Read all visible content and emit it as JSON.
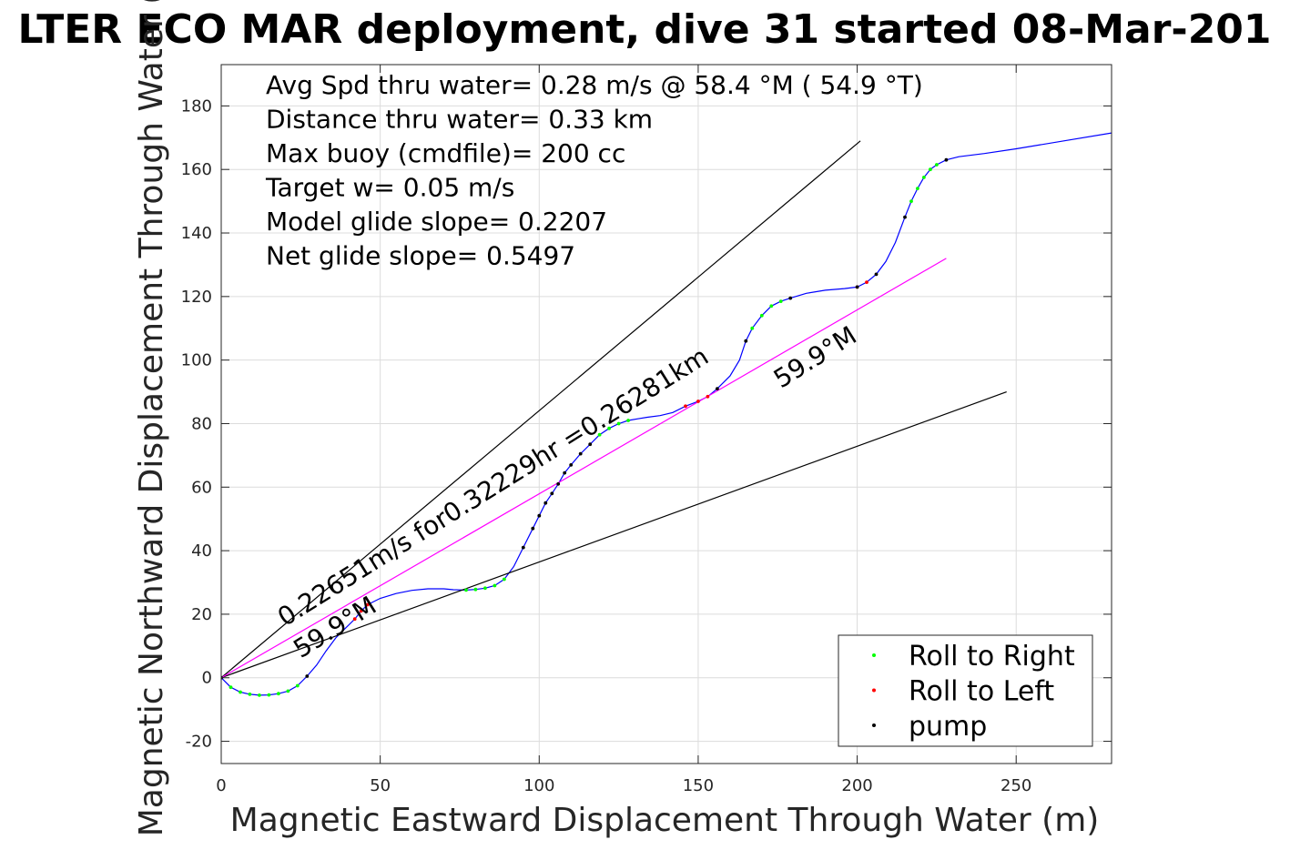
{
  "chart_data": {
    "type": "line",
    "title": "LTER ECO MAR deployment, dive 31 started 08-Mar-201",
    "xlabel": "Magnetic Eastward Displacement Through Water (m)",
    "ylabel": "Magnetic Northward Displacement Through Water (",
    "xlim": [
      0,
      280
    ],
    "ylim": [
      -27,
      193
    ],
    "xticks": [
      0,
      50,
      100,
      150,
      200,
      250
    ],
    "yticks": [
      -20,
      0,
      20,
      40,
      60,
      80,
      100,
      120,
      140,
      160,
      180
    ],
    "grid": true,
    "legend_position": "bottom-right",
    "info_lines": [
      "Avg Spd thru water=  0.28 m/s @  58.4 °M ( 54.9 °T)",
      "Distance thru water=  0.33 km",
      "Max buoy (cmdfile)= 200 cc",
      "Target w= 0.05 m/s",
      "Model glide slope= 0.2207",
      "Net glide slope= 0.5497"
    ],
    "annotations": [
      {
        "text": "0.22651m/s for0.32229hr =0.26281km",
        "x": 20,
        "y": 16,
        "rotate": -32
      },
      {
        "text": "59.9°M",
        "x": 25,
        "y": 6,
        "rotate": -32
      },
      {
        "text": "59.9°M",
        "x": 176,
        "y": 91,
        "rotate": -32
      }
    ],
    "legend": [
      {
        "label": "Roll to Right",
        "color": "#00ff00"
      },
      {
        "label": "Roll to Left",
        "color": "#ff0000"
      },
      {
        "label": "pump",
        "color": "#000000"
      }
    ],
    "series": [
      {
        "kind": "track",
        "color": "#0000ff",
        "points": [
          [
            0,
            0
          ],
          [
            3,
            -3
          ],
          [
            6,
            -4.5
          ],
          [
            9,
            -5.2
          ],
          [
            12,
            -5.5
          ],
          [
            15,
            -5.4
          ],
          [
            18,
            -5
          ],
          [
            21,
            -4.2
          ],
          [
            24,
            -2.5
          ],
          [
            27,
            0.5
          ],
          [
            30,
            4
          ],
          [
            33,
            8.5
          ],
          [
            36,
            12.5
          ],
          [
            39,
            15.5
          ],
          [
            42,
            18.5
          ],
          [
            44,
            21
          ],
          [
            46,
            23
          ],
          [
            50,
            25
          ],
          [
            55,
            26.5
          ],
          [
            60,
            27.5
          ],
          [
            65,
            28
          ],
          [
            70,
            28
          ],
          [
            73,
            27.7
          ],
          [
            77,
            27.6
          ],
          [
            80,
            27.8
          ],
          [
            83,
            28.2
          ],
          [
            86,
            29
          ],
          [
            89,
            31
          ],
          [
            92,
            35
          ],
          [
            95,
            41
          ],
          [
            98,
            47
          ],
          [
            100,
            51
          ],
          [
            102,
            55
          ],
          [
            104,
            58
          ],
          [
            106,
            61
          ],
          [
            108,
            64.5
          ],
          [
            110,
            67
          ],
          [
            113,
            70.5
          ],
          [
            116,
            73.5
          ],
          [
            119,
            76.5
          ],
          [
            122,
            78.5
          ],
          [
            125,
            80
          ],
          [
            128,
            81
          ],
          [
            131,
            81.5
          ],
          [
            134,
            82
          ],
          [
            138,
            82.5
          ],
          [
            142,
            83.5
          ],
          [
            146,
            85.5
          ],
          [
            150,
            87
          ],
          [
            153,
            88.5
          ],
          [
            156,
            91
          ],
          [
            160,
            95
          ],
          [
            163,
            100
          ],
          [
            165,
            106
          ],
          [
            167,
            110
          ],
          [
            170,
            114
          ],
          [
            173,
            117
          ],
          [
            176,
            118.5
          ],
          [
            179,
            119.5
          ],
          [
            184,
            121
          ],
          [
            190,
            122
          ],
          [
            196,
            122.5
          ],
          [
            200,
            123
          ],
          [
            203,
            124.5
          ],
          [
            206,
            127
          ],
          [
            209,
            131
          ],
          [
            212,
            137
          ],
          [
            215,
            145
          ],
          [
            217,
            150
          ],
          [
            219,
            154
          ],
          [
            221,
            157.5
          ],
          [
            223,
            160
          ],
          [
            225,
            161.5
          ],
          [
            228,
            163
          ],
          [
            232,
            164
          ],
          [
            240,
            165
          ],
          [
            250,
            166.5
          ],
          [
            265,
            169
          ],
          [
            280,
            171.5
          ]
        ]
      },
      {
        "kind": "line",
        "color": "#000000",
        "points": [
          [
            0,
            0
          ],
          [
            201,
            169
          ]
        ]
      },
      {
        "kind": "line",
        "color": "#000000",
        "points": [
          [
            0,
            0
          ],
          [
            247,
            90
          ]
        ]
      },
      {
        "kind": "line",
        "color": "#ff00ff",
        "points": [
          [
            0,
            0
          ],
          [
            228,
            132
          ]
        ]
      },
      {
        "name": "Roll to Right",
        "kind": "markers",
        "color": "#00ff00",
        "points": [
          [
            3,
            -3
          ],
          [
            6,
            -4.5
          ],
          [
            9,
            -5.2
          ],
          [
            12,
            -5.5
          ],
          [
            15,
            -5.4
          ],
          [
            18,
            -5
          ],
          [
            21,
            -4.2
          ],
          [
            24,
            -2.5
          ],
          [
            77,
            27.6
          ],
          [
            80,
            27.8
          ],
          [
            83,
            28.2
          ],
          [
            86,
            29
          ],
          [
            89,
            31
          ],
          [
            119,
            76.5
          ],
          [
            122,
            78.5
          ],
          [
            125,
            80
          ],
          [
            128,
            81
          ],
          [
            167,
            110
          ],
          [
            170,
            114
          ],
          [
            173,
            117
          ],
          [
            176,
            118.5
          ],
          [
            217,
            150
          ],
          [
            219,
            154
          ],
          [
            221,
            157.5
          ],
          [
            223,
            160
          ],
          [
            225,
            161.5
          ]
        ]
      },
      {
        "name": "Roll to Left",
        "kind": "markers",
        "color": "#ff0000",
        "points": [
          [
            42,
            18.5
          ],
          [
            44,
            21
          ],
          [
            46,
            23
          ],
          [
            146,
            85.5
          ],
          [
            150,
            87
          ],
          [
            153,
            88.5
          ],
          [
            200,
            123
          ],
          [
            203,
            124.5
          ]
        ]
      },
      {
        "name": "pump",
        "kind": "markers",
        "color": "#000000",
        "points": [
          [
            0,
            0
          ],
          [
            27,
            0.5
          ],
          [
            95,
            41
          ],
          [
            98,
            47
          ],
          [
            100,
            51
          ],
          [
            102,
            55
          ],
          [
            104,
            58
          ],
          [
            106,
            61
          ],
          [
            108,
            64.5
          ],
          [
            110,
            67
          ],
          [
            113,
            70.5
          ],
          [
            116,
            73.5
          ],
          [
            156,
            91
          ],
          [
            165,
            106
          ],
          [
            179,
            119.5
          ],
          [
            200,
            123
          ],
          [
            206,
            127
          ],
          [
            215,
            145
          ],
          [
            228,
            163
          ]
        ]
      }
    ]
  }
}
